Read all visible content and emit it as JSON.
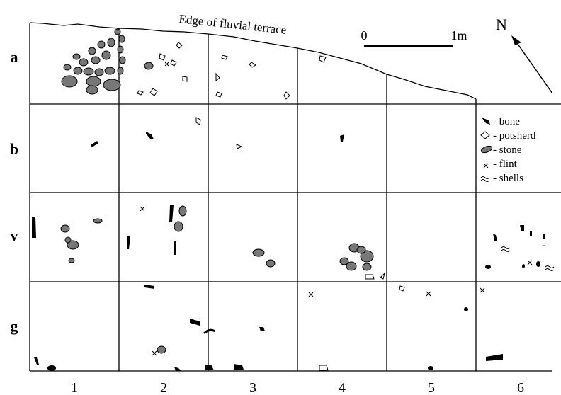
{
  "annotation": "Edge of fluvial terrace",
  "scale": {
    "start": "0",
    "end": "1m"
  },
  "north": "N",
  "rows": [
    "a",
    "b",
    "v",
    "g"
  ],
  "columns": [
    "1",
    "2",
    "3",
    "4",
    "5",
    "6"
  ],
  "legend": [
    "- bone",
    "- potsherd",
    "- stone",
    "- flint",
    "- shells"
  ]
}
